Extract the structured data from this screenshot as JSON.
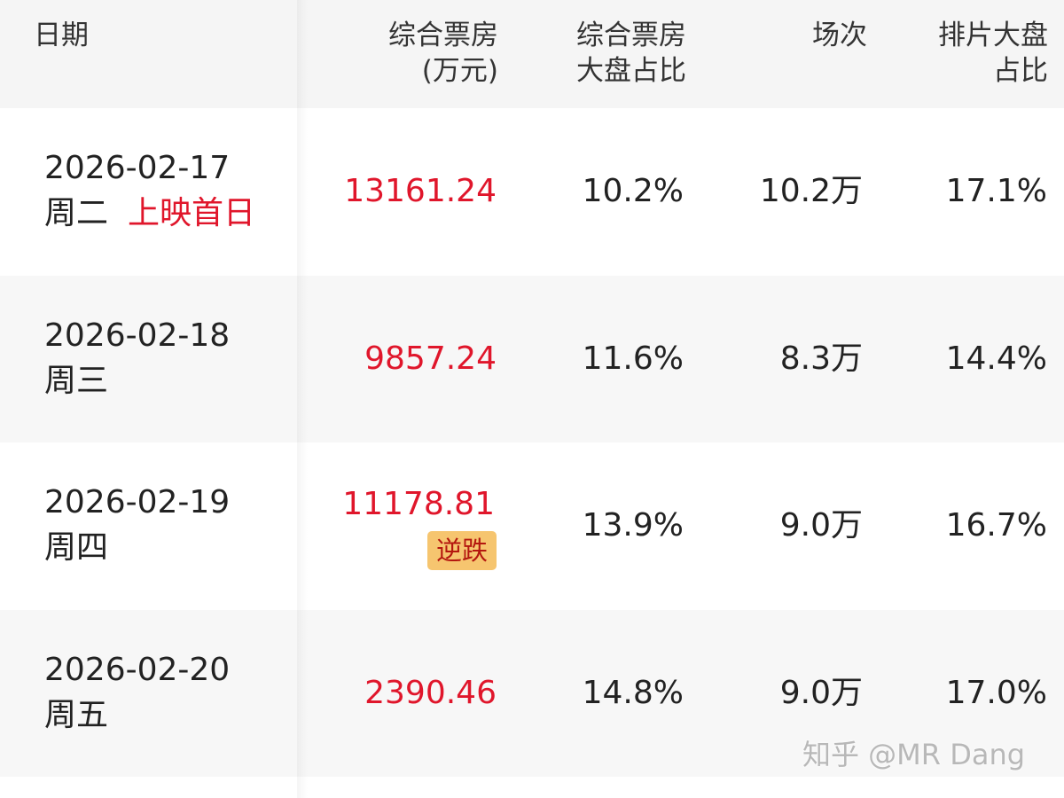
{
  "header": {
    "columns": [
      [
        "日期"
      ],
      [
        "综合票房",
        "(万元)"
      ],
      [
        "综合票房",
        "大盘占比"
      ],
      [
        "场次"
      ],
      [
        "排片大盘",
        "占比"
      ]
    ]
  },
  "table": {
    "rows": [
      {
        "date": "2026-02-17",
        "weekday": "周二",
        "tag": "上映首日",
        "box_office": "13161.24",
        "share": "10.2%",
        "screenings": "10.2万",
        "schedule": "17.1%"
      },
      {
        "date": "2026-02-18",
        "weekday": "周三",
        "box_office": "9857.24",
        "share": "11.6%",
        "screenings": "8.3万",
        "schedule": "14.4%"
      },
      {
        "date": "2026-02-19",
        "weekday": "周四",
        "box_office": "11178.81",
        "badge": "逆跌",
        "share": "13.9%",
        "screenings": "9.0万",
        "schedule": "16.7%"
      },
      {
        "date": "2026-02-20",
        "weekday": "周五",
        "box_office": "2390.46",
        "share": "14.8%",
        "screenings": "9.0万",
        "schedule": "17.0%"
      }
    ]
  },
  "watermark": "知乎 @MR Dang"
}
